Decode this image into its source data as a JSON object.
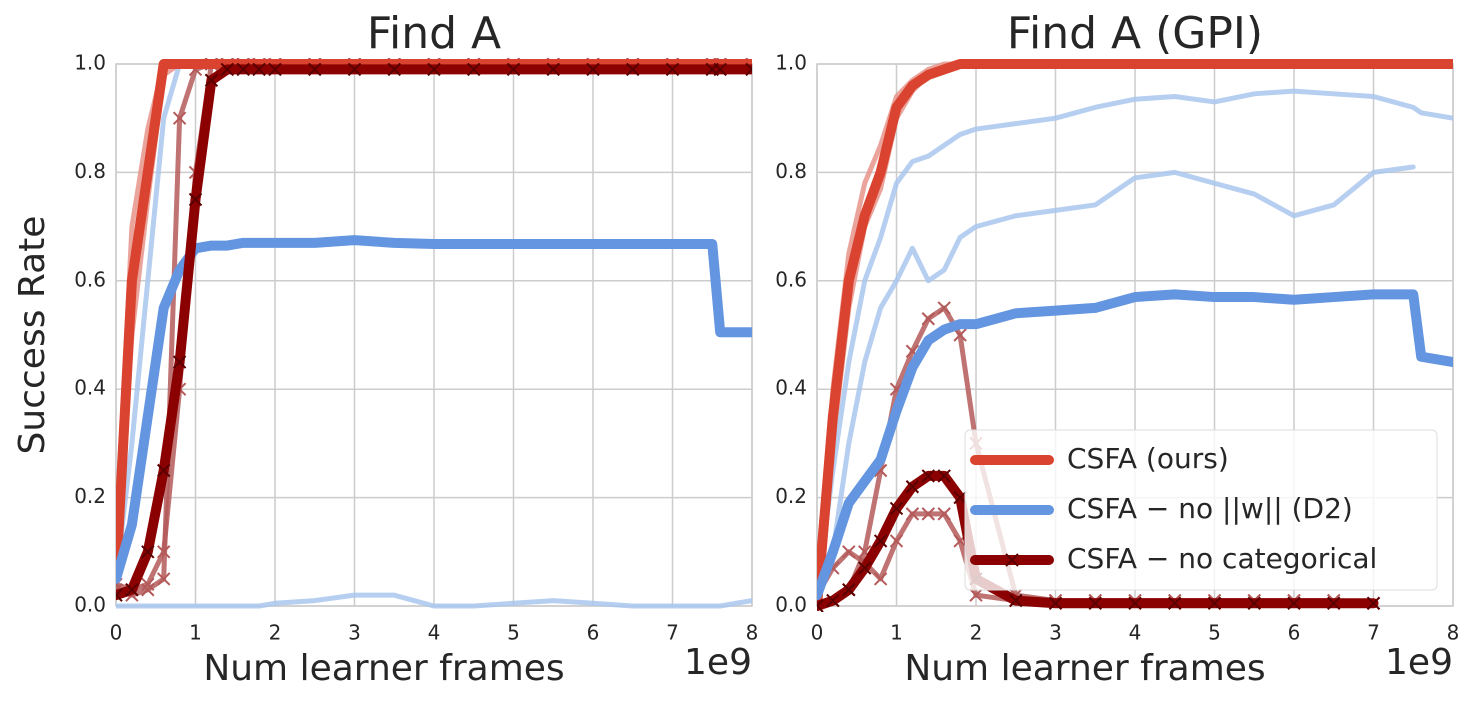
{
  "chart_data": [
    {
      "type": "line",
      "title": "Find A",
      "xlabel": "Num learner frames",
      "ylabel": "Success Rate",
      "x_offset_label": "1e9",
      "x": [
        0,
        0.2,
        0.4,
        0.6,
        0.8,
        1.0,
        1.2,
        1.4,
        1.6,
        1.8,
        2.0,
        2.5,
        3,
        3.5,
        4,
        4.5,
        5,
        5.5,
        6,
        6.5,
        7,
        7.5,
        7.6,
        8
      ],
      "xlim": [
        0,
        8
      ],
      "xticks": [
        0,
        1,
        2,
        3,
        4,
        5,
        6,
        7,
        8
      ],
      "ylim": [
        0,
        1
      ],
      "yticks": [
        {
          "value": 0,
          "label": "0.0"
        },
        0.2,
        0.4,
        0.6,
        0.8,
        {
          "value": 1,
          "label": "1.0"
        }
      ],
      "grid": true,
      "series": [
        {
          "color": "#e8948a",
          "values": [
            0.1,
            0.7,
            0.88,
            1,
            1,
            1,
            1,
            1,
            1,
            1,
            1,
            1,
            1,
            1,
            1,
            1,
            1,
            1,
            1,
            1,
            1,
            1,
            1,
            1
          ]
        },
        {
          "color": "#e8948a",
          "values": [
            0.02,
            0.5,
            0.75,
            0.98,
            1,
            1,
            1,
            1,
            1,
            1,
            1,
            1,
            1,
            1,
            1,
            1,
            1,
            1,
            1,
            1,
            1,
            1,
            1,
            1
          ]
        },
        {
          "color": "#a9c7ef",
          "values": [
            0.05,
            0.3,
            0.6,
            0.9,
            1,
            1,
            1,
            1,
            1,
            1,
            1,
            1,
            1,
            1,
            1,
            1,
            1,
            1,
            1,
            1,
            1,
            1,
            1,
            1
          ]
        },
        {
          "color": "#a9c7ef",
          "values": [
            0,
            0,
            0,
            0,
            0,
            0,
            0,
            0,
            0,
            0,
            0.005,
            0.01,
            0.02,
            0.02,
            0,
            0,
            0.005,
            0.01,
            0.005,
            0,
            0,
            0,
            0,
            0.01
          ]
        },
        {
          "color": "#b45a5a",
          "marker": "x",
          "values": [
            0.03,
            0.02,
            0.03,
            0.05,
            0.9,
            0.99,
            1,
            1,
            1,
            1,
            1,
            1,
            1,
            1,
            1,
            1,
            1,
            1,
            1,
            1,
            1,
            1,
            1,
            1
          ]
        },
        {
          "color": "#b45a5a",
          "marker": "x",
          "values": [
            0.04,
            0.03,
            0.04,
            0.1,
            0.4,
            0.8,
            1,
            1,
            1,
            1,
            1,
            1,
            1,
            1,
            1,
            1,
            1,
            1,
            1,
            1,
            1,
            1,
            1,
            1
          ]
        },
        {
          "name": "CSFA (ours)",
          "color": "#d9432f",
          "values": [
            0.05,
            0.6,
            0.8,
            1,
            1,
            1,
            1,
            1,
            1,
            1,
            1,
            1,
            1,
            1,
            1,
            1,
            1,
            1,
            1,
            1,
            1,
            1,
            1,
            1
          ]
        },
        {
          "name": "CSFA − no ||w|| (D2)",
          "color": "#6495e0",
          "values": [
            0.05,
            0.15,
            0.35,
            0.55,
            0.62,
            0.66,
            0.665,
            0.665,
            0.67,
            0.67,
            0.67,
            0.67,
            0.675,
            0.67,
            0.668,
            0.668,
            0.668,
            0.668,
            0.668,
            0.668,
            0.668,
            0.668,
            0.505,
            0.505
          ]
        },
        {
          "name": "CSFA − no categorical",
          "color": "#8b0000",
          "marker": "x",
          "values": [
            0.02,
            0.03,
            0.1,
            0.25,
            0.45,
            0.75,
            0.97,
            0.99,
            0.99,
            0.99,
            0.99,
            0.99,
            0.99,
            0.99,
            0.99,
            0.99,
            0.99,
            0.99,
            0.99,
            0.99,
            0.99,
            0.99,
            0.99,
            0.99
          ]
        }
      ]
    },
    {
      "type": "line",
      "title": "Find A (GPI)",
      "xlabel": "Num learner frames",
      "x_offset_label": "1e9",
      "x": [
        0,
        0.2,
        0.4,
        0.6,
        0.8,
        1.0,
        1.2,
        1.4,
        1.6,
        1.8,
        2.0,
        2.5,
        3,
        3.5,
        4,
        4.5,
        5,
        5.5,
        6,
        6.5,
        7,
        7.5,
        7.6,
        8
      ],
      "xlim": [
        0,
        8
      ],
      "xticks": [
        0,
        1,
        2,
        3,
        4,
        5,
        6,
        7,
        8
      ],
      "ylim": [
        0,
        1
      ],
      "yticks": [
        {
          "value": 0,
          "label": "0.0"
        },
        0.2,
        0.4,
        0.6,
        0.8,
        {
          "value": 1,
          "label": "1.0"
        }
      ],
      "grid": true,
      "legend": "lower right",
      "series": [
        {
          "color": "#e8948a",
          "values": [
            0,
            0.4,
            0.65,
            0.78,
            0.85,
            0.94,
            0.97,
            0.99,
            1,
            1,
            1,
            1,
            1,
            1,
            1,
            1,
            1,
            1,
            1,
            1,
            1,
            1,
            1,
            1
          ]
        },
        {
          "color": "#e8948a",
          "values": [
            0,
            0.3,
            0.55,
            0.7,
            0.77,
            0.9,
            0.95,
            0.98,
            0.99,
            1,
            1,
            1,
            1,
            1,
            1,
            1,
            1,
            1,
            1,
            1,
            1,
            1,
            1,
            1
          ]
        },
        {
          "color": "#a9c7ef",
          "values": [
            0.02,
            0.25,
            0.45,
            0.6,
            0.68,
            0.78,
            0.82,
            0.83,
            0.85,
            0.87,
            0.88,
            0.89,
            0.9,
            0.92,
            0.935,
            0.94,
            0.93,
            0.945,
            0.95,
            0.945,
            0.94,
            0.92,
            0.91,
            0.9
          ]
        },
        {
          "color": "#a9c7ef",
          "values": [
            0.01,
            0.1,
            0.3,
            0.45,
            0.55,
            0.6,
            0.66,
            0.6,
            0.62,
            0.68,
            0.7,
            0.72,
            0.73,
            0.74,
            0.79,
            0.8,
            0.78,
            0.76,
            0.72,
            0.74,
            0.8,
            0.81,
            null,
            null
          ]
        },
        {
          "color": "#b45a5a",
          "marker": "x",
          "values": [
            0,
            0.01,
            0.03,
            0.1,
            0.25,
            0.4,
            0.47,
            0.53,
            0.55,
            0.5,
            0.3,
            0.02,
            0.01,
            0.01,
            0.01,
            0.01,
            0.01,
            0.01,
            0.01,
            0.01,
            0.005,
            null,
            null,
            null
          ]
        },
        {
          "color": "#b45a5a",
          "marker": "x",
          "values": [
            0.02,
            0.07,
            0.1,
            0.08,
            0.05,
            0.12,
            0.17,
            0.17,
            0.17,
            0.12,
            0.02,
            0.01,
            0.01,
            0.01,
            0.01,
            0.01,
            0.01,
            0.01,
            0.01,
            0.01,
            0.005,
            null,
            null,
            null
          ]
        },
        {
          "name": "CSFA (ours)",
          "color": "#d9432f",
          "values": [
            0,
            0.35,
            0.6,
            0.72,
            0.8,
            0.92,
            0.96,
            0.98,
            0.99,
            1,
            1,
            1,
            1,
            1,
            1,
            1,
            1,
            1,
            1,
            1,
            1,
            1,
            1,
            1
          ]
        },
        {
          "name": "CSFA − no ||w|| (D2)",
          "color": "#6495e0",
          "values": [
            0.02,
            0.1,
            0.19,
            0.23,
            0.27,
            0.36,
            0.44,
            0.49,
            0.51,
            0.52,
            0.52,
            0.54,
            0.545,
            0.55,
            0.57,
            0.575,
            0.57,
            0.57,
            0.565,
            0.57,
            0.575,
            0.575,
            0.46,
            0.45
          ]
        },
        {
          "name": "CSFA − no categorical",
          "color": "#8b0000",
          "marker": "x",
          "values": [
            0,
            0.01,
            0.03,
            0.07,
            0.12,
            0.18,
            0.22,
            0.24,
            0.24,
            0.2,
            0.05,
            0.01,
            0.005,
            0.005,
            0.005,
            0.005,
            0.005,
            0.005,
            0.005,
            0.005,
            0.005,
            null,
            null,
            null
          ]
        }
      ]
    }
  ]
}
